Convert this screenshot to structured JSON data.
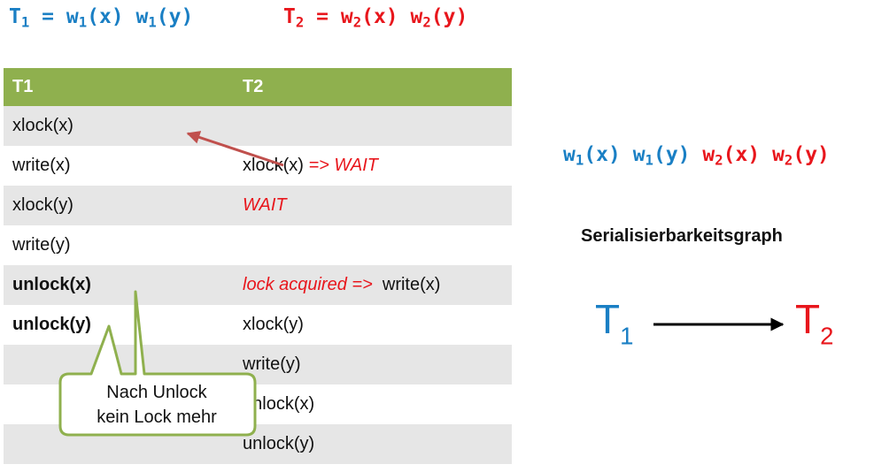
{
  "header": {
    "t1_definition": {
      "lhs": "T",
      "lhs_sub": "1",
      "eq": " = ",
      "ops": [
        {
          "op": "w",
          "sub": "1",
          "arg": "(x)"
        },
        {
          "op": "w",
          "sub": "1",
          "arg": "(y)"
        }
      ]
    },
    "t2_definition": {
      "lhs": "T",
      "lhs_sub": "2",
      "eq": " = ",
      "ops": [
        {
          "op": "w",
          "sub": "2",
          "arg": "(x)"
        },
        {
          "op": "w",
          "sub": "2",
          "arg": "(y)"
        }
      ]
    }
  },
  "table": {
    "columns": [
      "T1",
      "T2"
    ],
    "rows": [
      {
        "t1": "xlock(x)",
        "t1_bold": false,
        "t2": "",
        "t2_wait": "",
        "t2_after": ""
      },
      {
        "t1": "write(x)",
        "t1_bold": false,
        "t2": "xlock(x) ",
        "t2_wait": "=> WAIT",
        "t2_after": ""
      },
      {
        "t1": "xlock(y)",
        "t1_bold": false,
        "t2": "",
        "t2_wait": "WAIT",
        "t2_after": ""
      },
      {
        "t1": "write(y)",
        "t1_bold": false,
        "t2": "",
        "t2_wait": "",
        "t2_after": ""
      },
      {
        "t1": "unlock(x)",
        "t1_bold": true,
        "t2": "",
        "t2_wait": "lock acquired => ",
        "t2_after": " write(x)"
      },
      {
        "t1": "unlock(y)",
        "t1_bold": true,
        "t2": "xlock(y)",
        "t2_wait": "",
        "t2_after": ""
      },
      {
        "t1": "",
        "t1_bold": false,
        "t2": "write(y)",
        "t2_wait": "",
        "t2_after": ""
      },
      {
        "t1": "",
        "t1_bold": false,
        "t2": "unlock(x)",
        "t2_wait": "",
        "t2_after": ""
      },
      {
        "t1": "",
        "t1_bold": false,
        "t2": "unlock(y)",
        "t2_wait": "",
        "t2_after": ""
      }
    ]
  },
  "callout": {
    "line1": "Nach Unlock",
    "line2": "kein Lock mehr"
  },
  "schedule": {
    "ops": [
      {
        "op": "w",
        "sub": "1",
        "arg": "(x)",
        "color": "blue"
      },
      {
        "op": "w",
        "sub": "1",
        "arg": "(y)",
        "color": "blue"
      },
      {
        "op": "w",
        "sub": "2",
        "arg": "(x)",
        "color": "red"
      },
      {
        "op": "w",
        "sub": "2",
        "arg": "(y)",
        "color": "red"
      }
    ]
  },
  "graph": {
    "title": "Serialisierbarkeitsgraph",
    "nodes": [
      {
        "label": "T",
        "sub": "1",
        "color": "#1a7fc4"
      },
      {
        "label": "T",
        "sub": "2",
        "color": "#e8161c"
      }
    ],
    "edges": [
      {
        "from": "T1",
        "to": "T2"
      }
    ]
  },
  "colors": {
    "blue": "#1a7fc4",
    "red": "#e8161c",
    "table_header": "#8fb04e",
    "callout_border": "#8fb04e",
    "arrow": "#c0504d"
  }
}
